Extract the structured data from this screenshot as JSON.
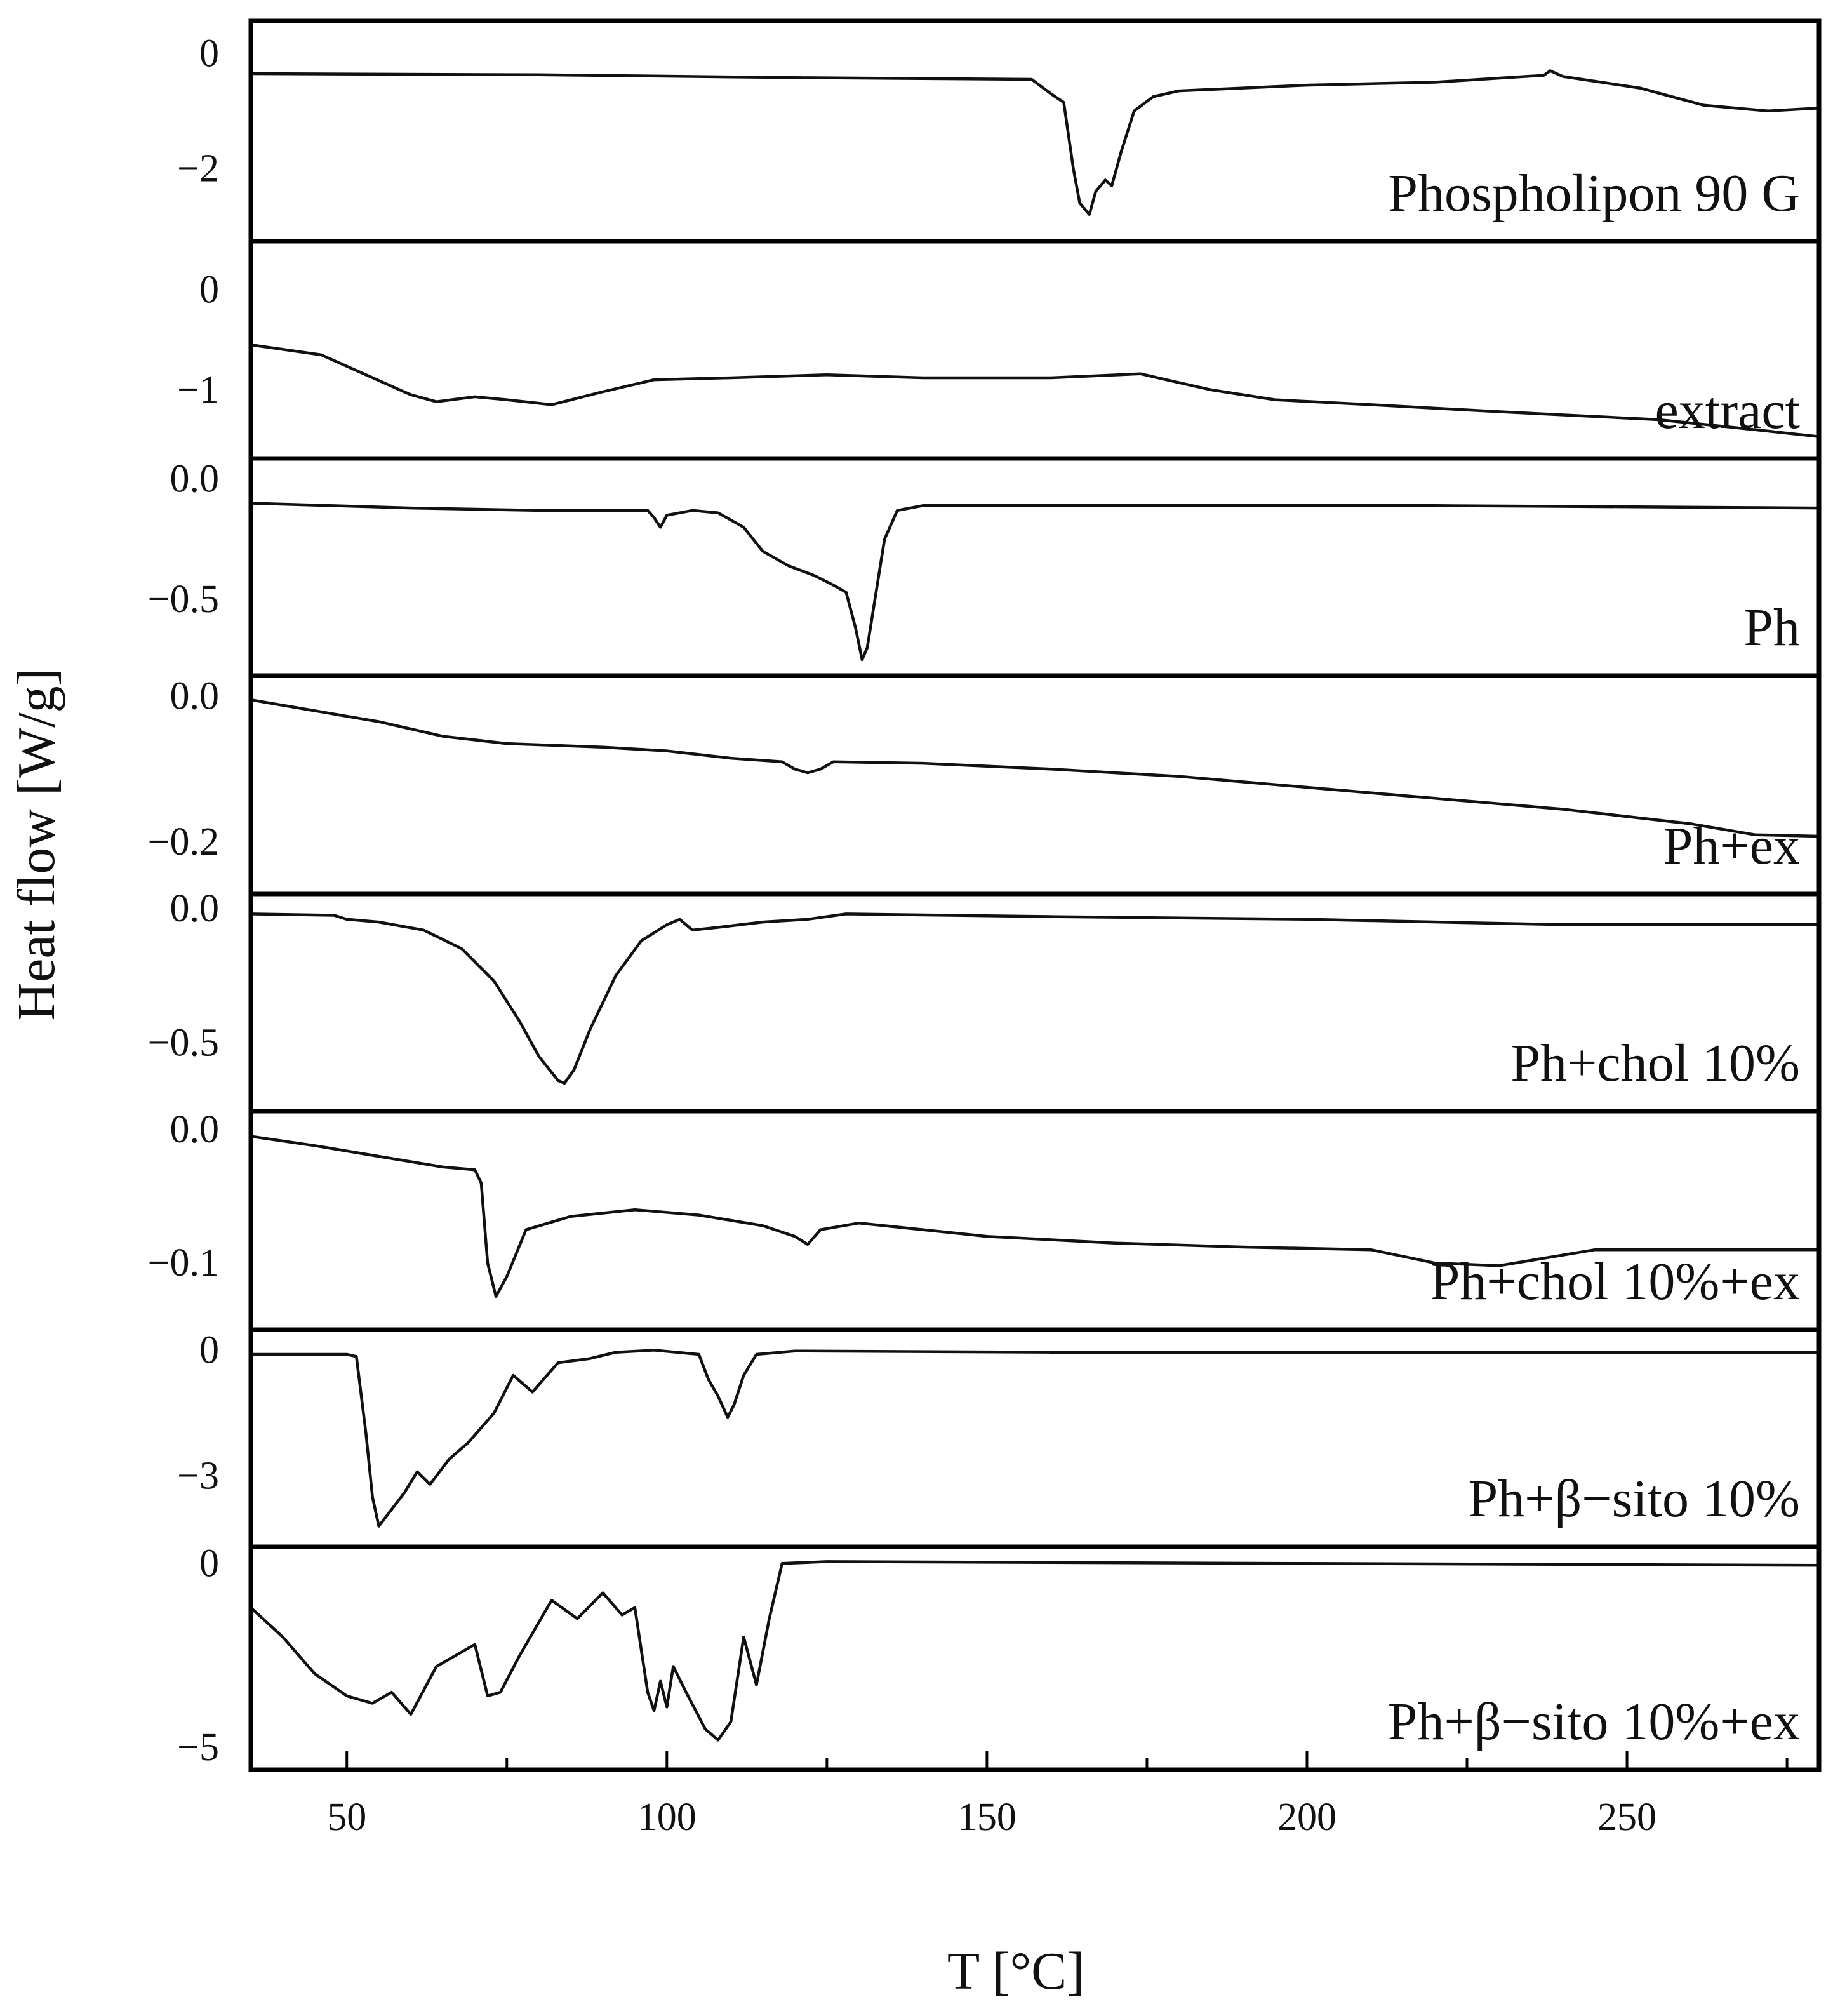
{
  "chart_data": {
    "type": "line",
    "layout": "stacked-panels",
    "xlabel": "T [°C]",
    "ylabel": "Heat flow [W/g]",
    "xlim": [
      35,
      280
    ],
    "x_ticks": [
      50,
      100,
      150,
      200,
      250
    ],
    "x_minor_ticks": [
      75,
      125,
      175,
      225,
      275
    ],
    "series": [
      {
        "name": "Phospholipon 90 G",
        "ylim": [
          0.5,
          -3.2
        ],
        "y_ticks": [
          {
            "value": 0,
            "label": "0"
          },
          {
            "value": -2,
            "label": "−2"
          }
        ],
        "points": [
          [
            35,
            -0.35
          ],
          [
            80,
            -0.37
          ],
          [
            120,
            -0.42
          ],
          [
            157,
            -0.45
          ],
          [
            160,
            -0.7
          ],
          [
            162,
            -0.85
          ],
          [
            163.5,
            -2.0
          ],
          [
            164.5,
            -2.6
          ],
          [
            166,
            -2.8
          ],
          [
            167,
            -2.4
          ],
          [
            168.5,
            -2.2
          ],
          [
            169.5,
            -2.3
          ],
          [
            171,
            -1.7
          ],
          [
            173,
            -1.0
          ],
          [
            176,
            -0.75
          ],
          [
            180,
            -0.65
          ],
          [
            200,
            -0.55
          ],
          [
            220,
            -0.5
          ],
          [
            237,
            -0.38
          ],
          [
            238,
            -0.3
          ],
          [
            240,
            -0.4
          ],
          [
            252,
            -0.6
          ],
          [
            262,
            -0.9
          ],
          [
            272,
            -1.0
          ],
          [
            280,
            -0.95
          ]
        ]
      },
      {
        "name": "extract",
        "ylim": [
          0.45,
          -1.65
        ],
        "y_ticks": [
          {
            "value": 0,
            "label": "0"
          },
          {
            "value": -1,
            "label": "−1"
          }
        ],
        "points": [
          [
            35,
            -0.55
          ],
          [
            46,
            -0.65
          ],
          [
            53,
            -0.85
          ],
          [
            60,
            -1.05
          ],
          [
            64,
            -1.12
          ],
          [
            70,
            -1.07
          ],
          [
            75,
            -1.1
          ],
          [
            82,
            -1.15
          ],
          [
            90,
            -1.02
          ],
          [
            98,
            -0.9
          ],
          [
            110,
            -0.88
          ],
          [
            125,
            -0.85
          ],
          [
            140,
            -0.88
          ],
          [
            160,
            -0.88
          ],
          [
            174,
            -0.84
          ],
          [
            178,
            -0.9
          ],
          [
            185,
            -1.0
          ],
          [
            195,
            -1.1
          ],
          [
            210,
            -1.15
          ],
          [
            230,
            -1.22
          ],
          [
            255,
            -1.3
          ],
          [
            270,
            -1.4
          ],
          [
            280,
            -1.47
          ]
        ]
      },
      {
        "name": "Ph",
        "ylim": [
          0.07,
          -0.8
        ],
        "y_ticks": [
          {
            "value": 0.0,
            "label": "0.0"
          },
          {
            "value": -0.5,
            "label": "−0.5"
          }
        ],
        "points": [
          [
            35,
            -0.1
          ],
          [
            60,
            -0.12
          ],
          [
            80,
            -0.13
          ],
          [
            97,
            -0.13
          ],
          [
            98,
            -0.16
          ],
          [
            99,
            -0.2
          ],
          [
            100,
            -0.15
          ],
          [
            104,
            -0.13
          ],
          [
            108,
            -0.14
          ],
          [
            112,
            -0.2
          ],
          [
            115,
            -0.3
          ],
          [
            119,
            -0.36
          ],
          [
            123,
            -0.4
          ],
          [
            126,
            -0.44
          ],
          [
            128,
            -0.47
          ],
          [
            129.5,
            -0.62
          ],
          [
            130.5,
            -0.75
          ],
          [
            131.3,
            -0.7
          ],
          [
            132.5,
            -0.5
          ],
          [
            134,
            -0.25
          ],
          [
            136,
            -0.13
          ],
          [
            140,
            -0.11
          ],
          [
            180,
            -0.11
          ],
          [
            220,
            -0.11
          ],
          [
            280,
            -0.12
          ]
        ]
      },
      {
        "name": "Ph+ex",
        "ylim": [
          0.023,
          -0.266
        ],
        "y_ticks": [
          {
            "value": 0.0,
            "label": "0.0"
          },
          {
            "value": -0.2,
            "label": "−0.2"
          }
        ],
        "points": [
          [
            35,
            -0.005
          ],
          [
            45,
            -0.02
          ],
          [
            55,
            -0.035
          ],
          [
            65,
            -0.055
          ],
          [
            75,
            -0.065
          ],
          [
            90,
            -0.07
          ],
          [
            100,
            -0.075
          ],
          [
            110,
            -0.085
          ],
          [
            118,
            -0.09
          ],
          [
            120,
            -0.1
          ],
          [
            122,
            -0.105
          ],
          [
            124,
            -0.1
          ],
          [
            126,
            -0.09
          ],
          [
            140,
            -0.092
          ],
          [
            160,
            -0.1
          ],
          [
            180,
            -0.11
          ],
          [
            200,
            -0.125
          ],
          [
            220,
            -0.14
          ],
          [
            240,
            -0.155
          ],
          [
            260,
            -0.175
          ],
          [
            270,
            -0.19
          ],
          [
            280,
            -0.192
          ]
        ]
      },
      {
        "name": "Ph+chol 10%",
        "ylim": [
          0.04,
          -0.74
        ],
        "y_ticks": [
          {
            "value": 0.0,
            "label": "0.0"
          },
          {
            "value": -0.5,
            "label": "−0.5"
          }
        ],
        "points": [
          [
            35,
            -0.02
          ],
          [
            48,
            -0.025
          ],
          [
            50,
            -0.04
          ],
          [
            55,
            -0.05
          ],
          [
            62,
            -0.08
          ],
          [
            68,
            -0.15
          ],
          [
            73,
            -0.27
          ],
          [
            77,
            -0.42
          ],
          [
            80,
            -0.55
          ],
          [
            83,
            -0.64
          ],
          [
            84,
            -0.65
          ],
          [
            85.5,
            -0.6
          ],
          [
            88,
            -0.45
          ],
          [
            92,
            -0.25
          ],
          [
            96,
            -0.12
          ],
          [
            100,
            -0.06
          ],
          [
            102,
            -0.04
          ],
          [
            104,
            -0.08
          ],
          [
            108,
            -0.07
          ],
          [
            115,
            -0.05
          ],
          [
            122,
            -0.04
          ],
          [
            128,
            -0.02
          ],
          [
            160,
            -0.03
          ],
          [
            200,
            -0.04
          ],
          [
            240,
            -0.06
          ],
          [
            280,
            -0.06
          ]
        ]
      },
      {
        "name": "Ph+chol 10%+ex",
        "ylim": [
          0.011,
          -0.147
        ],
        "y_ticks": [
          {
            "value": 0.0,
            "label": "0.0"
          },
          {
            "value": -0.1,
            "label": "−0.1"
          }
        ],
        "points": [
          [
            35,
            -0.005
          ],
          [
            45,
            -0.012
          ],
          [
            55,
            -0.02
          ],
          [
            65,
            -0.028
          ],
          [
            70,
            -0.03
          ],
          [
            71,
            -0.04
          ],
          [
            72,
            -0.1
          ],
          [
            73.3,
            -0.125
          ],
          [
            75,
            -0.11
          ],
          [
            78,
            -0.075
          ],
          [
            85,
            -0.065
          ],
          [
            95,
            -0.06
          ],
          [
            105,
            -0.064
          ],
          [
            115,
            -0.072
          ],
          [
            120,
            -0.08
          ],
          [
            122,
            -0.086
          ],
          [
            124,
            -0.075
          ],
          [
            130,
            -0.07
          ],
          [
            150,
            -0.08
          ],
          [
            170,
            -0.085
          ],
          [
            190,
            -0.088
          ],
          [
            210,
            -0.09
          ],
          [
            220,
            -0.1
          ],
          [
            230,
            -0.102
          ],
          [
            245,
            -0.09
          ],
          [
            260,
            -0.09
          ],
          [
            280,
            -0.09
          ]
        ]
      },
      {
        "name": "Ph+β−sito 10%",
        "ylim": [
          0.4,
          -4.6
        ],
        "y_ticks": [
          {
            "value": 0,
            "label": "0"
          },
          {
            "value": -3,
            "label": "−3"
          }
        ],
        "points": [
          [
            35,
            -0.1
          ],
          [
            50,
            -0.1
          ],
          [
            51.5,
            -0.15
          ],
          [
            53,
            -2.0
          ],
          [
            54,
            -3.5
          ],
          [
            55,
            -4.2
          ],
          [
            57,
            -3.8
          ],
          [
            59,
            -3.4
          ],
          [
            61,
            -2.9
          ],
          [
            63,
            -3.2
          ],
          [
            66,
            -2.6
          ],
          [
            69,
            -2.2
          ],
          [
            73,
            -1.5
          ],
          [
            76,
            -0.6
          ],
          [
            79,
            -1.0
          ],
          [
            83,
            -0.3
          ],
          [
            88,
            -0.2
          ],
          [
            92,
            -0.05
          ],
          [
            98,
            0.0
          ],
          [
            105,
            -0.1
          ],
          [
            106.5,
            -0.7
          ],
          [
            108,
            -1.1
          ],
          [
            109.5,
            -1.6
          ],
          [
            110.5,
            -1.3
          ],
          [
            112,
            -0.6
          ],
          [
            114,
            -0.1
          ],
          [
            120,
            -0.02
          ],
          [
            160,
            -0.05
          ],
          [
            220,
            -0.05
          ],
          [
            280,
            -0.05
          ]
        ]
      },
      {
        "name": "Ph+β−sito 10%+ex",
        "ylim": [
          0.35,
          -5.5
        ],
        "y_ticks": [
          {
            "value": 0,
            "label": "0"
          },
          {
            "value": -5,
            "label": "−5"
          }
        ],
        "points": [
          [
            35,
            -1.2
          ],
          [
            40,
            -2.0
          ],
          [
            45,
            -3.0
          ],
          [
            50,
            -3.6
          ],
          [
            54,
            -3.8
          ],
          [
            57,
            -3.5
          ],
          [
            60,
            -4.1
          ],
          [
            64,
            -2.8
          ],
          [
            67,
            -2.5
          ],
          [
            70,
            -2.2
          ],
          [
            72,
            -3.6
          ],
          [
            74,
            -3.5
          ],
          [
            77,
            -2.5
          ],
          [
            82,
            -1.0
          ],
          [
            86,
            -1.5
          ],
          [
            90,
            -0.8
          ],
          [
            93,
            -1.4
          ],
          [
            95,
            -1.2
          ],
          [
            97,
            -3.5
          ],
          [
            98,
            -4.0
          ],
          [
            99,
            -3.2
          ],
          [
            100,
            -3.9
          ],
          [
            101,
            -2.8
          ],
          [
            103,
            -3.5
          ],
          [
            106,
            -4.5
          ],
          [
            108,
            -4.8
          ],
          [
            110,
            -4.3
          ],
          [
            112,
            -2.0
          ],
          [
            114,
            -3.3
          ],
          [
            116,
            -1.5
          ],
          [
            118,
            0.0
          ],
          [
            125,
            0.05
          ],
          [
            200,
            0.0
          ],
          [
            280,
            -0.05
          ]
        ]
      }
    ]
  }
}
